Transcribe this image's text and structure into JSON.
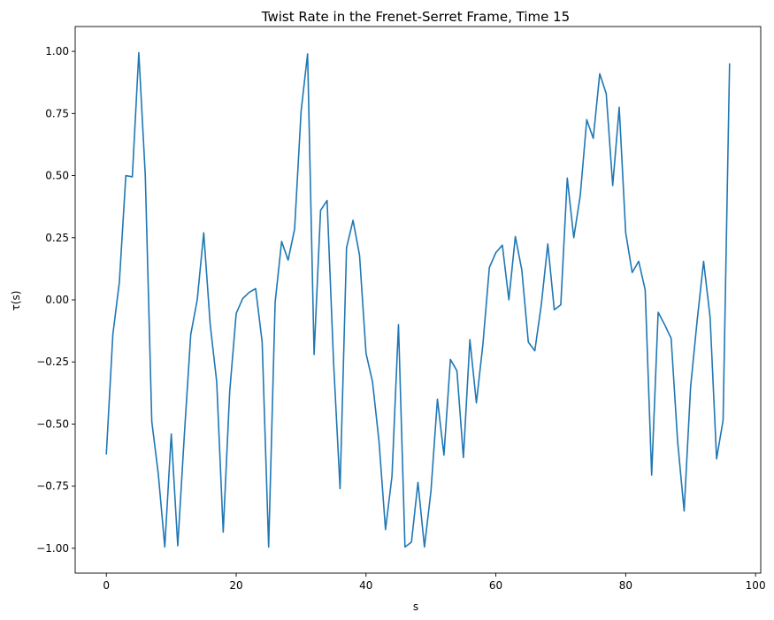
{
  "chart_data": {
    "type": "line",
    "title": "Twist Rate in the Frenet-Serret Frame, Time 15",
    "xlabel": "s",
    "ylabel": "τ(s)",
    "xlim": [
      -4.8,
      100.8
    ],
    "ylim": [
      -1.1,
      1.1
    ],
    "xticks": [
      0,
      20,
      40,
      60,
      80,
      100
    ],
    "yticks": [
      -1.0,
      -0.75,
      -0.5,
      -0.25,
      0.0,
      0.25,
      0.5,
      0.75,
      1.0
    ],
    "xtick_labels": [
      "0",
      "20",
      "40",
      "60",
      "80",
      "100"
    ],
    "ytick_labels": [
      "−1.00",
      "−0.75",
      "−0.50",
      "−0.25",
      "0.00",
      "0.25",
      "0.50",
      "0.75",
      "1.00"
    ],
    "grid": false,
    "legend": "none",
    "series": [
      {
        "color": "#1f77b4",
        "x": [
          0,
          1,
          2,
          3,
          4,
          5,
          6,
          7,
          8,
          9,
          10,
          11,
          12,
          13,
          14,
          15,
          16,
          17,
          18,
          19,
          20,
          21,
          22,
          23,
          24,
          25,
          26,
          27,
          28,
          29,
          30,
          31,
          32,
          33,
          34,
          35,
          36,
          37,
          38,
          39,
          40,
          41,
          42,
          43,
          44,
          45,
          46,
          47,
          48,
          49,
          50,
          51,
          52,
          53,
          54,
          55,
          56,
          57,
          58,
          59,
          60,
          61,
          62,
          63,
          64,
          65,
          66,
          67,
          68,
          69,
          70,
          71,
          72,
          73,
          74,
          75,
          76,
          77,
          78,
          79,
          80,
          81,
          82,
          83,
          84,
          85,
          86,
          87,
          88,
          89,
          90,
          91,
          92,
          93,
          94,
          95,
          96
        ],
        "values": [
          -0.62,
          -0.14,
          0.07,
          0.5,
          0.495,
          0.995,
          0.5,
          -0.49,
          -0.7,
          -0.995,
          -0.54,
          -0.99,
          -0.55,
          -0.14,
          0.0,
          0.27,
          -0.1,
          -0.33,
          -0.935,
          -0.37,
          -0.055,
          0.005,
          0.03,
          0.045,
          -0.17,
          -0.995,
          -0.01,
          0.235,
          0.16,
          0.285,
          0.76,
          0.99,
          -0.22,
          0.36,
          0.4,
          -0.25,
          -0.76,
          0.21,
          0.32,
          0.18,
          -0.215,
          -0.33,
          -0.57,
          -0.925,
          -0.71,
          -0.1,
          -0.995,
          -0.975,
          -0.735,
          -0.995,
          -0.77,
          -0.4,
          -0.625,
          -0.24,
          -0.285,
          -0.635,
          -0.16,
          -0.415,
          -0.18,
          0.13,
          0.19,
          0.22,
          0.0,
          0.255,
          0.12,
          -0.17,
          -0.205,
          -0.02,
          0.225,
          -0.04,
          -0.02,
          0.49,
          0.25,
          0.42,
          0.725,
          0.65,
          0.91,
          0.83,
          0.46,
          0.775,
          0.27,
          0.11,
          0.155,
          0.04,
          -0.705,
          -0.05,
          -0.1,
          -0.155,
          -0.57,
          -0.85,
          -0.35,
          -0.085,
          0.155,
          -0.07,
          -0.64,
          -0.485,
          0.95
        ]
      }
    ]
  }
}
